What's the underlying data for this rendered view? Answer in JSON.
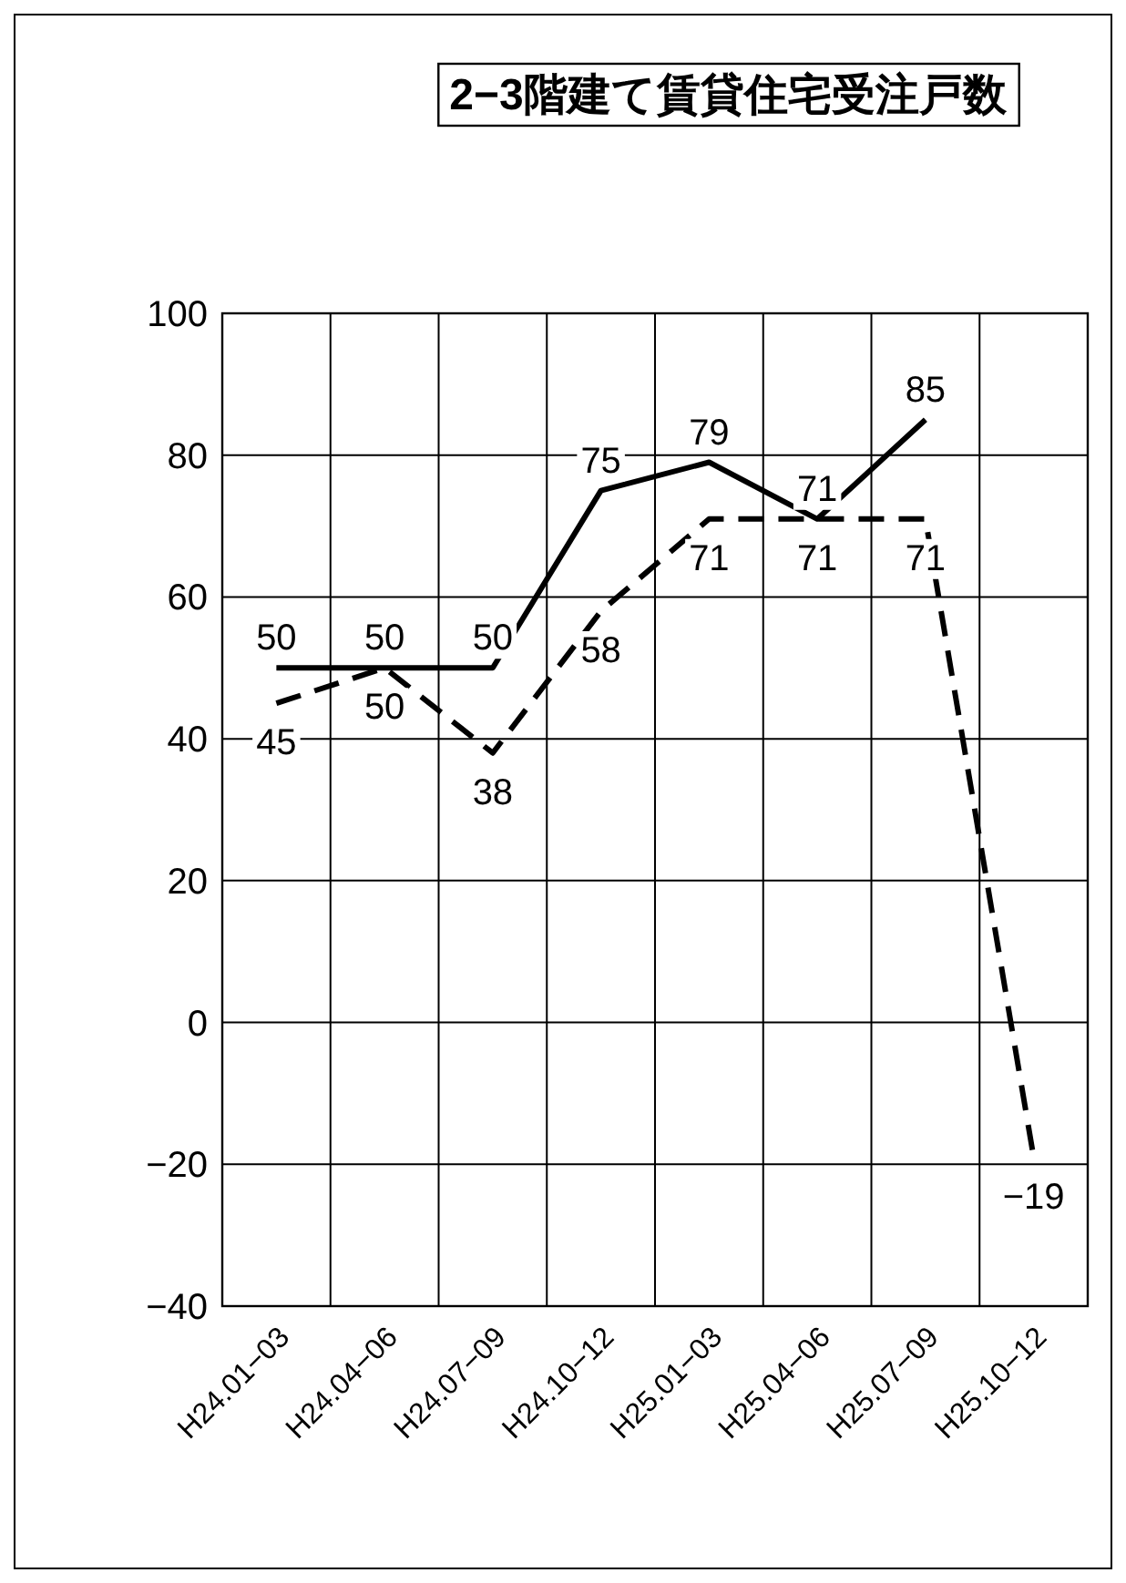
{
  "chart_data": {
    "type": "line",
    "title": "2−3階建て賃貸住宅受注戸数",
    "categories": [
      "H24.01−03",
      "H24.04−06",
      "H24.07−09",
      "H24.10−12",
      "H25.01−03",
      "H25.04−06",
      "H25.07−09",
      "H25.10−12"
    ],
    "series": [
      {
        "color": "#000000",
        "line_style": "solid",
        "values": [
          50,
          50,
          50,
          75,
          79,
          71,
          85,
          null
        ]
      },
      {
        "color": "#000000",
        "line_style": "dashed",
        "values": [
          45,
          50,
          38,
          58,
          71,
          71,
          71,
          -19
        ]
      }
    ],
    "ylim": [
      -40,
      100
    ],
    "yticks": [
      -40,
      -20,
      0,
      20,
      40,
      60,
      80,
      100
    ],
    "grid": true,
    "data_labels": true,
    "marker": "none"
  }
}
